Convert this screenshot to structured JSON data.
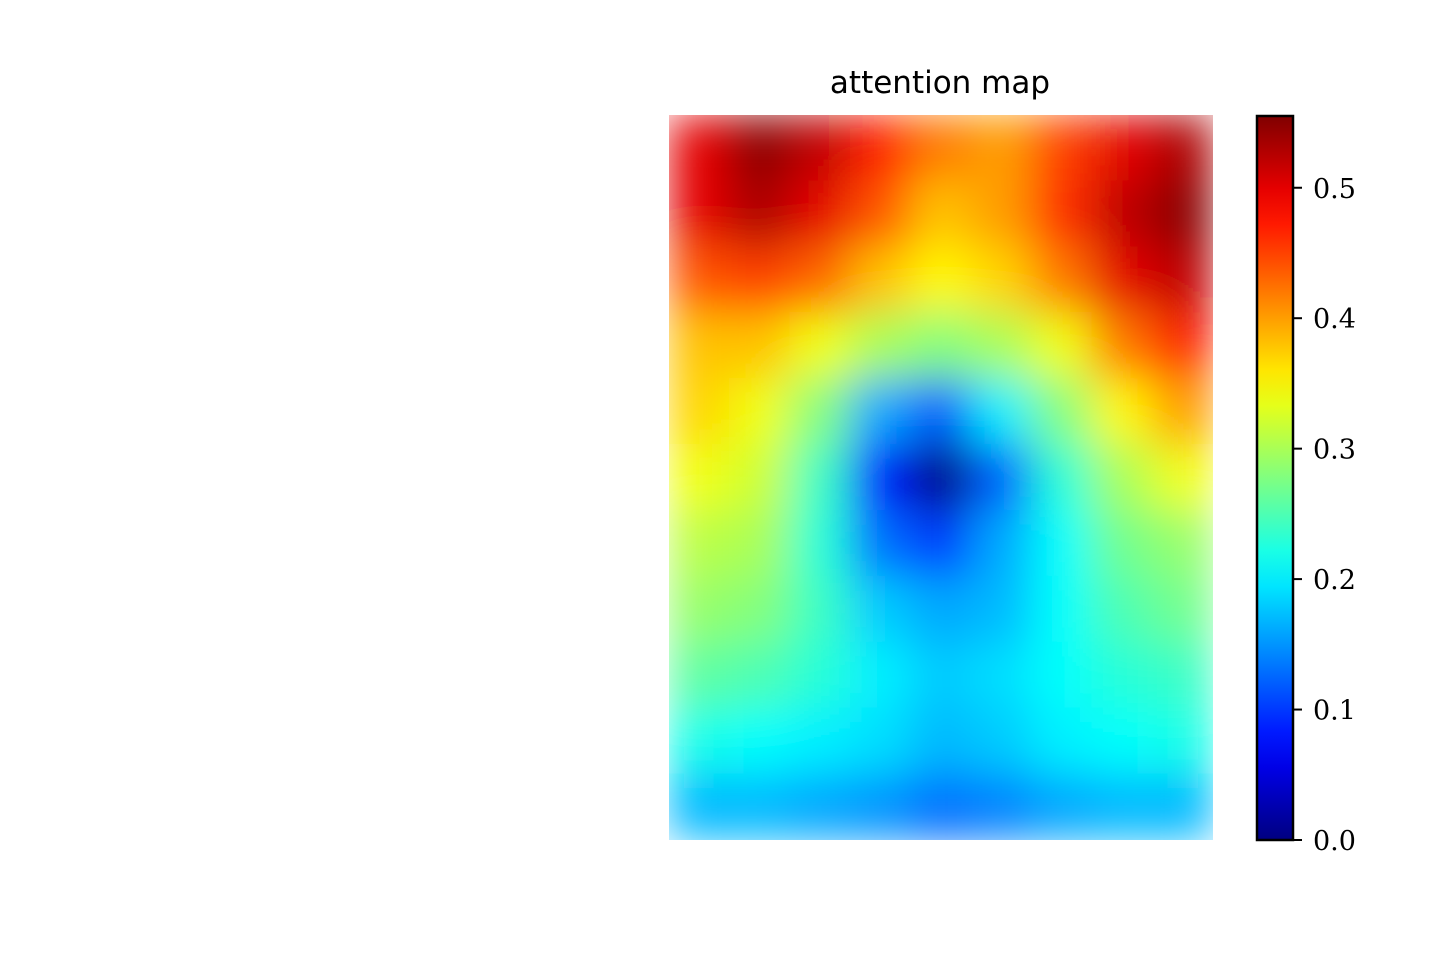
{
  "chart_data": {
    "type": "heatmap",
    "title": "attention map",
    "xlabel": "",
    "ylabel": "",
    "axes_visible": false,
    "colormap": "jet",
    "colorbar": {
      "range": [
        0.0,
        0.555
      ],
      "ticks": [
        0.0,
        0.1,
        0.2,
        0.3,
        0.4,
        0.5
      ],
      "tick_labels": [
        "0.0",
        "0.1",
        "0.2",
        "0.3",
        "0.4",
        "0.5"
      ],
      "placement": "right"
    },
    "grid": {
      "rows": 11,
      "cols": 9,
      "values": [
        [
          0.5,
          0.55,
          0.52,
          0.47,
          0.42,
          0.4,
          0.45,
          0.5,
          0.53
        ],
        [
          0.5,
          0.53,
          0.5,
          0.44,
          0.38,
          0.4,
          0.46,
          0.52,
          0.55
        ],
        [
          0.44,
          0.45,
          0.43,
          0.38,
          0.35,
          0.37,
          0.42,
          0.5,
          0.52
        ],
        [
          0.38,
          0.38,
          0.34,
          0.3,
          0.28,
          0.3,
          0.34,
          0.42,
          0.47
        ],
        [
          0.37,
          0.34,
          0.28,
          0.16,
          0.12,
          0.2,
          0.28,
          0.35,
          0.4
        ],
        [
          0.34,
          0.32,
          0.24,
          0.08,
          0.0,
          0.12,
          0.23,
          0.3,
          0.34
        ],
        [
          0.31,
          0.3,
          0.23,
          0.13,
          0.1,
          0.16,
          0.21,
          0.27,
          0.29
        ],
        [
          0.29,
          0.28,
          0.24,
          0.18,
          0.16,
          0.17,
          0.21,
          0.25,
          0.27
        ],
        [
          0.26,
          0.25,
          0.23,
          0.2,
          0.18,
          0.19,
          0.21,
          0.23,
          0.24
        ],
        [
          0.22,
          0.21,
          0.2,
          0.19,
          0.17,
          0.18,
          0.2,
          0.21,
          0.22
        ],
        [
          0.17,
          0.17,
          0.16,
          0.15,
          0.13,
          0.14,
          0.16,
          0.17,
          0.17
        ]
      ]
    }
  }
}
